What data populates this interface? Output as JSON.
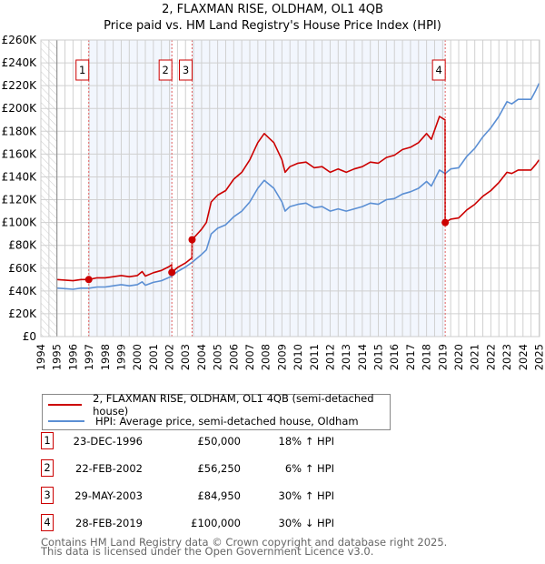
{
  "chart_data": {
    "type": "line",
    "title": "2, FLAXMAN RISE, OLDHAM, OL1 4QB",
    "subtitle": "Price paid vs. HM Land Registry's House Price Index (HPI)",
    "xlim": [
      1994,
      2025
    ],
    "ylim": [
      0,
      260000
    ],
    "grid": true,
    "y_ticks": [
      0,
      20000,
      40000,
      60000,
      80000,
      100000,
      120000,
      140000,
      160000,
      180000,
      200000,
      220000,
      240000,
      260000
    ],
    "y_tick_labels": [
      "£0",
      "£20K",
      "£40K",
      "£60K",
      "£80K",
      "£100K",
      "£120K",
      "£140K",
      "£160K",
      "£180K",
      "£200K",
      "£220K",
      "£240K",
      "£260K"
    ],
    "x_tick_labels": [
      "1994",
      "1995",
      "1996",
      "1997",
      "1998",
      "1999",
      "2000",
      "2001",
      "2002",
      "2003",
      "2004",
      "2005",
      "2006",
      "2007",
      "2008",
      "2009",
      "2010",
      "2011",
      "2012",
      "2013",
      "2014",
      "2015",
      "2016",
      "2017",
      "2018",
      "2019",
      "2020",
      "2021",
      "2022",
      "2023",
      "2024",
      "2025"
    ],
    "no_data_before": 1995,
    "series": [
      {
        "name": "2, FLAXMAN RISE, OLDHAM, OL1 4QB (semi-detached house)",
        "color": "#cc0000",
        "points": [
          [
            1995.0,
            50
          ],
          [
            1995.5,
            49.5
          ],
          [
            1996.0,
            49
          ],
          [
            1996.5,
            50
          ],
          [
            1996.98,
            50
          ],
          [
            1997.5,
            51.5
          ],
          [
            1998.0,
            51.5
          ],
          [
            1998.5,
            52.5
          ],
          [
            1999.0,
            53.5
          ],
          [
            1999.5,
            52.5
          ],
          [
            2000.0,
            53.5
          ],
          [
            2000.3,
            57
          ],
          [
            2000.5,
            53
          ],
          [
            2001.0,
            56
          ],
          [
            2001.5,
            58
          ],
          [
            2002.0,
            61.5
          ],
          [
            2002.14,
            63
          ],
          [
            2002.15,
            56.25
          ],
          [
            2002.5,
            60.5
          ],
          [
            2003.0,
            64.5
          ],
          [
            2003.4,
            69
          ],
          [
            2003.41,
            84.95
          ],
          [
            2004.0,
            94
          ],
          [
            2004.3,
            100
          ],
          [
            2004.6,
            118
          ],
          [
            2005.0,
            124
          ],
          [
            2005.5,
            128
          ],
          [
            2006.0,
            138
          ],
          [
            2006.5,
            144
          ],
          [
            2007.0,
            155
          ],
          [
            2007.5,
            170
          ],
          [
            2007.9,
            178
          ],
          [
            2008.5,
            170
          ],
          [
            2009.0,
            155
          ],
          [
            2009.2,
            144
          ],
          [
            2009.5,
            149
          ],
          [
            2010.0,
            152
          ],
          [
            2010.5,
            153
          ],
          [
            2011.0,
            148
          ],
          [
            2011.5,
            149
          ],
          [
            2012.0,
            144
          ],
          [
            2012.5,
            147
          ],
          [
            2013.0,
            144
          ],
          [
            2013.5,
            147
          ],
          [
            2014.0,
            149
          ],
          [
            2014.5,
            153
          ],
          [
            2015.0,
            152
          ],
          [
            2015.5,
            157
          ],
          [
            2016.0,
            159
          ],
          [
            2016.5,
            164
          ],
          [
            2017.0,
            166
          ],
          [
            2017.5,
            170
          ],
          [
            2018.0,
            178
          ],
          [
            2018.3,
            173
          ],
          [
            2018.8,
            193
          ],
          [
            2019.15,
            190
          ],
          [
            2019.16,
            100
          ],
          [
            2019.5,
            103
          ],
          [
            2020.0,
            104
          ],
          [
            2020.5,
            111
          ],
          [
            2021.0,
            116
          ],
          [
            2021.5,
            123
          ],
          [
            2022.0,
            128
          ],
          [
            2022.5,
            135
          ],
          [
            2023.0,
            144
          ],
          [
            2023.3,
            143
          ],
          [
            2023.7,
            146
          ],
          [
            2024.0,
            146
          ],
          [
            2024.5,
            146
          ],
          [
            2024.8,
            151
          ],
          [
            2025.0,
            155
          ]
        ]
      },
      {
        "name": "HPI: Average price, semi-detached house, Oldham",
        "color": "#5b8fd4",
        "points": [
          [
            1995.0,
            42.5
          ],
          [
            1995.5,
            42
          ],
          [
            1996.0,
            41.5
          ],
          [
            1996.5,
            42.5
          ],
          [
            1997.0,
            42.4
          ],
          [
            1997.5,
            43.5
          ],
          [
            1998.0,
            43.5
          ],
          [
            1998.5,
            44.5
          ],
          [
            1999.0,
            45.5
          ],
          [
            1999.5,
            44.5
          ],
          [
            2000.0,
            45.5
          ],
          [
            2000.3,
            48
          ],
          [
            2000.5,
            45
          ],
          [
            2001.0,
            47.5
          ],
          [
            2001.5,
            49
          ],
          [
            2002.0,
            52
          ],
          [
            2002.15,
            53
          ],
          [
            2002.5,
            57
          ],
          [
            2003.0,
            61
          ],
          [
            2003.4,
            65
          ],
          [
            2004.0,
            72
          ],
          [
            2004.3,
            76
          ],
          [
            2004.6,
            90
          ],
          [
            2005.0,
            95
          ],
          [
            2005.5,
            98
          ],
          [
            2006.0,
            105
          ],
          [
            2006.5,
            110
          ],
          [
            2007.0,
            118
          ],
          [
            2007.5,
            130
          ],
          [
            2007.9,
            137
          ],
          [
            2008.5,
            130
          ],
          [
            2009.0,
            118
          ],
          [
            2009.2,
            110
          ],
          [
            2009.5,
            114
          ],
          [
            2010.0,
            116
          ],
          [
            2010.5,
            117
          ],
          [
            2011.0,
            113
          ],
          [
            2011.5,
            114
          ],
          [
            2012.0,
            110
          ],
          [
            2012.5,
            112
          ],
          [
            2013.0,
            110
          ],
          [
            2013.5,
            112
          ],
          [
            2014.0,
            114
          ],
          [
            2014.5,
            117
          ],
          [
            2015.0,
            116
          ],
          [
            2015.5,
            120
          ],
          [
            2016.0,
            121
          ],
          [
            2016.5,
            125
          ],
          [
            2017.0,
            127
          ],
          [
            2017.5,
            130
          ],
          [
            2018.0,
            136
          ],
          [
            2018.3,
            132
          ],
          [
            2018.8,
            146
          ],
          [
            2019.16,
            143
          ],
          [
            2019.5,
            147
          ],
          [
            2020.0,
            148
          ],
          [
            2020.5,
            158
          ],
          [
            2021.0,
            165
          ],
          [
            2021.5,
            175
          ],
          [
            2022.0,
            183
          ],
          [
            2022.5,
            193
          ],
          [
            2023.0,
            206
          ],
          [
            2023.3,
            204
          ],
          [
            2023.7,
            208
          ],
          [
            2024.0,
            208
          ],
          [
            2024.5,
            208
          ],
          [
            2024.8,
            216
          ],
          [
            2025.0,
            222
          ]
        ]
      }
    ],
    "shaded_ranges": [
      [
        1996.98,
        2002.15
      ],
      [
        2003.41,
        2019.16
      ]
    ],
    "sales": [
      {
        "label": "1",
        "x": 1996.98,
        "value": 50000,
        "date": "23-DEC-1996",
        "price": "£50,000",
        "hpi": "18% ↑ HPI"
      },
      {
        "label": "2",
        "x": 2002.15,
        "value": 56250,
        "date": "22-FEB-2002",
        "price": "£56,250",
        "hpi": "6% ↑ HPI"
      },
      {
        "label": "3",
        "x": 2003.41,
        "value": 84950,
        "date": "29-MAY-2003",
        "price": "£84,950",
        "hpi": "30% ↑ HPI"
      },
      {
        "label": "4",
        "x": 2019.16,
        "value": 100000,
        "date": "28-FEB-2019",
        "price": "£100,000",
        "hpi": "30% ↓ HPI"
      }
    ]
  },
  "footer": {
    "line1": "Contains HM Land Registry data © Crown copyright and database right 2025.",
    "line2": "This data is licensed under the Open Government Licence v3.0."
  }
}
